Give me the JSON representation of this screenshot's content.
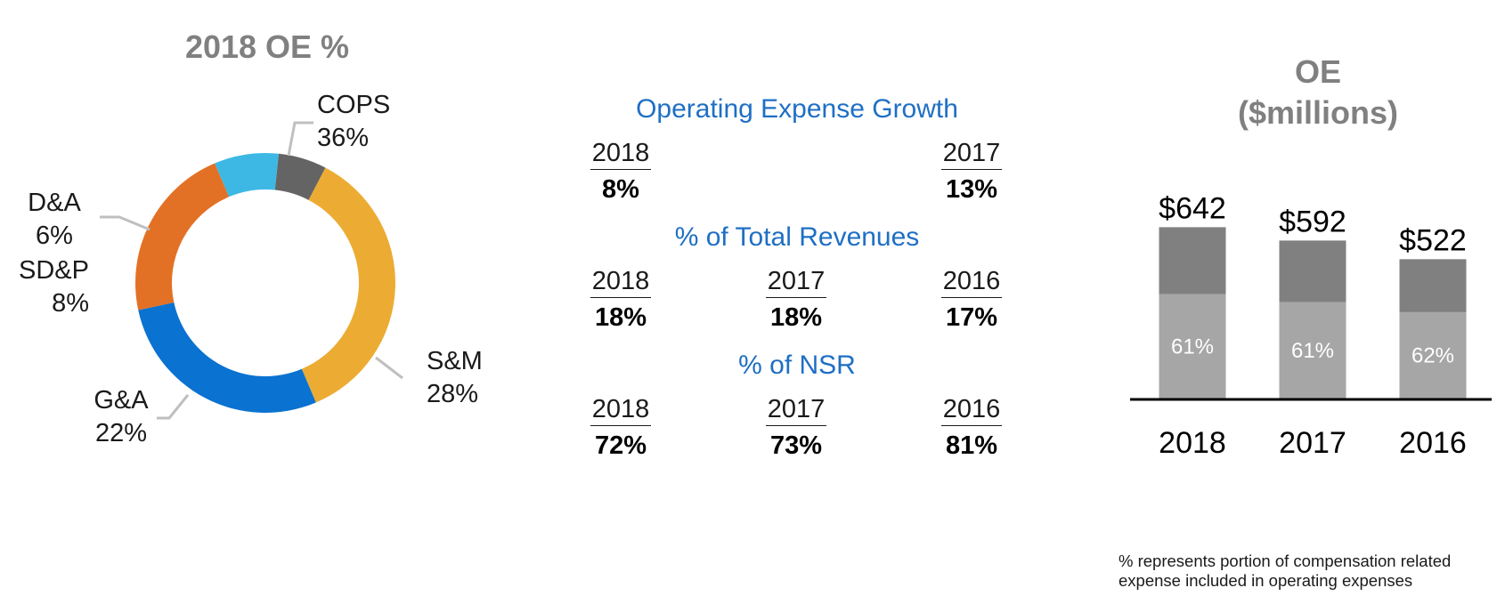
{
  "donut": {
    "title": "2018 OE %",
    "slices": [
      {
        "label": "COPS",
        "value": 36,
        "value_text": "36%",
        "color": "#ECAC33"
      },
      {
        "label": "S&M",
        "value": 28,
        "value_text": "28%",
        "color": "#0A72D0"
      },
      {
        "label": "G&A",
        "value": 22,
        "value_text": "22%",
        "color": "#E37125"
      },
      {
        "label": "SD&P",
        "value": 8,
        "value_text": "8%",
        "color": "#3DB8E4"
      },
      {
        "label": "D&A",
        "value": 6,
        "value_text": "6%",
        "color": "#646464"
      }
    ]
  },
  "middle": {
    "growth": {
      "heading": "Operating Expense Growth",
      "cols": [
        {
          "year": "2018",
          "value": "8%"
        },
        {
          "year": "2017",
          "value": "13%"
        }
      ]
    },
    "revenues": {
      "heading": "% of Total Revenues",
      "cols": [
        {
          "year": "2018",
          "value": "18%"
        },
        {
          "year": "2017",
          "value": "18%"
        },
        {
          "year": "2016",
          "value": "17%"
        }
      ]
    },
    "nsr": {
      "heading": "% of NSR",
      "cols": [
        {
          "year": "2018",
          "value": "72%"
        },
        {
          "year": "2017",
          "value": "73%"
        },
        {
          "year": "2016",
          "value": "81%"
        }
      ]
    }
  },
  "oe_chart": {
    "title_line1": "OE",
    "title_line2": "($millions)",
    "footnote_line1": "% represents portion of compensation related",
    "footnote_line2": "expense included in operating expenses"
  },
  "chart_data": [
    {
      "type": "pie",
      "title": "2018 OE %",
      "categories": [
        "COPS",
        "S&M",
        "G&A",
        "SD&P",
        "D&A"
      ],
      "values": [
        36,
        28,
        22,
        8,
        6
      ]
    },
    {
      "type": "bar",
      "title": "OE ($millions)",
      "categories": [
        "2018",
        "2017",
        "2016"
      ],
      "totals": [
        642,
        592,
        522
      ],
      "total_labels": [
        "$642",
        "$592",
        "$522"
      ],
      "compensation_share": [
        61,
        61,
        62
      ],
      "share_labels": [
        "61%",
        "61%",
        "62%"
      ],
      "colors": {
        "compensation": "#A6A6A6",
        "other": "#808080"
      }
    }
  ]
}
